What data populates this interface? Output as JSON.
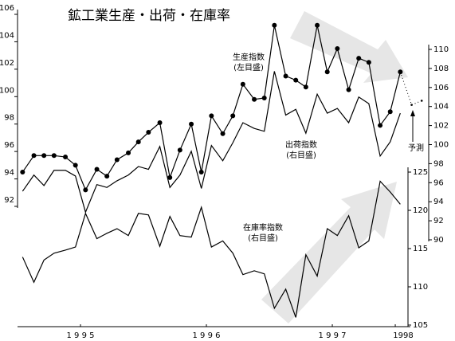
{
  "chart_data": {
    "type": "line",
    "title": "鉱工業生産・出荷・在庫率",
    "x": [
      1995.04,
      1995.13,
      1995.21,
      1995.29,
      1995.38,
      1995.46,
      1995.54,
      1995.63,
      1995.71,
      1995.79,
      1995.88,
      1995.96,
      1996.04,
      1996.13,
      1996.21,
      1996.29,
      1996.38,
      1996.46,
      1996.54,
      1996.63,
      1996.71,
      1996.79,
      1996.88,
      1996.96,
      1997.04,
      1997.13,
      1997.21,
      1997.29,
      1997.38,
      1997.46,
      1997.54,
      1997.63,
      1997.71,
      1997.79,
      1997.88,
      1997.96,
      1998.04
    ],
    "xlim": [
      1995.0,
      1998.12
    ],
    "xticks": [
      {
        "value": 1995.5,
        "label": "1 9 9 5"
      },
      {
        "value": 1996.5,
        "label": "1 9 9 6"
      },
      {
        "value": 1997.5,
        "label": "1 9 9 7"
      },
      1998
    ],
    "ylim": [
      92,
      106
    ],
    "yticks": [
      92,
      94,
      96,
      98,
      100,
      102,
      104,
      106
    ],
    "y2lim": [
      90,
      110
    ],
    "y2ticks": [
      90,
      92,
      94,
      96,
      98,
      100,
      102,
      104,
      106,
      108,
      110
    ],
    "y3lim": [
      105,
      125
    ],
    "y3ticks": [
      105,
      110,
      115,
      120,
      125
    ],
    "series": [
      {
        "name": "生産指数\n(左目盛)",
        "axis": "y",
        "color": "#000000",
        "markers": true,
        "values": [
          94.5,
          95.7,
          95.7,
          95.7,
          95.6,
          95.0,
          93.2,
          94.7,
          94.2,
          95.4,
          95.9,
          96.7,
          97.4,
          98.1,
          94.1,
          96.1,
          98.0,
          94.5,
          98.6,
          97.3,
          98.6,
          100.9,
          99.8,
          99.9,
          105.2,
          101.5,
          101.2,
          100.7,
          105.2,
          101.8,
          103.5,
          100.5,
          102.8,
          102.5,
          97.9,
          98.9,
          101.8
        ]
      },
      {
        "name": "出荷指数\n(右目盛)",
        "axis": "y2",
        "color": "#000000",
        "markers": false,
        "values": [
          95.1,
          96.8,
          95.7,
          97.3,
          97.3,
          96.7,
          92.9,
          95.8,
          95.5,
          96.2,
          96.8,
          97.7,
          97.4,
          99.8,
          95.5,
          96.8,
          99.3,
          95.4,
          99.9,
          98.3,
          100.2,
          102.3,
          101.7,
          101.4,
          107.7,
          103.1,
          103.7,
          101.2,
          105.3,
          103.3,
          103.8,
          102.3,
          105.0,
          104.3,
          98.8,
          100.3,
          103.3
        ]
      },
      {
        "name": "在庫率指数\n(右目盛)",
        "axis": "y3",
        "color": "#000000",
        "markers": false,
        "values": [
          113.9,
          110.6,
          113.5,
          114.4,
          114.8,
          115.2,
          119.6,
          116.3,
          117.0,
          117.6,
          116.7,
          119.6,
          119.4,
          115.3,
          119.2,
          116.7,
          116.5,
          120.4,
          115.2,
          116.0,
          114.4,
          111.6,
          112.1,
          111.7,
          107.2,
          109.7,
          106.0,
          114.2,
          111.4,
          117.6,
          116.7,
          119.3,
          115.1,
          116.0,
          123.8,
          122.4,
          120.8
        ]
      }
    ],
    "forecast": {
      "label": "予測",
      "x": [
        1998.13,
        1998.21
      ],
      "values": [
        99.4,
        99.7
      ]
    }
  }
}
